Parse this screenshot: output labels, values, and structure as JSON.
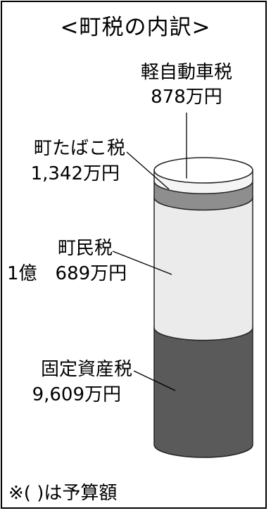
{
  "chart_data": {
    "type": "stacked-cylinder",
    "title": "<町税の内訳>",
    "unit": "万円",
    "order": [
      "固定資産税",
      "町民税",
      "町たばこ税",
      "軽自動車税"
    ],
    "segments": [
      {
        "name": "固定資産税",
        "name_text": "固定資産税",
        "value": 9609,
        "value_text": "9,609万円",
        "color": "#5a5a5a"
      },
      {
        "name": "町民税",
        "name_text": "町民税",
        "value": 10689,
        "value_text": "1億　689万円",
        "color": "#ebebeb"
      },
      {
        "name": "町たばこ税",
        "name_text": "町たばこ税",
        "value": 1342,
        "value_text": "1,342万円",
        "color": "#8e8e8e"
      },
      {
        "name": "軽自動車税",
        "name_text": "軽自動車税",
        "value": 878,
        "value_text": "878万円",
        "color": "#f4f4f4"
      }
    ]
  },
  "footnote": "※( )は予算額"
}
